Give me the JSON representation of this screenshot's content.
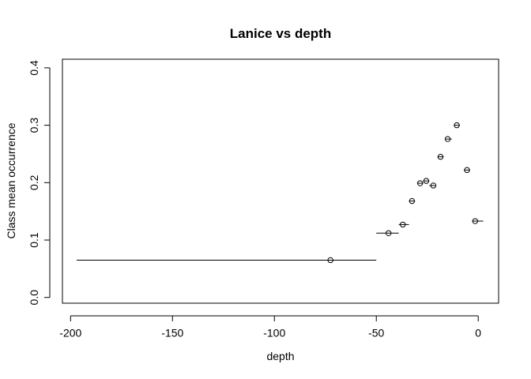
{
  "chart_data": {
    "type": "scatter",
    "title": "Lanice vs depth",
    "xlabel": "depth",
    "ylabel": "Class mean occurrence",
    "xlim": [
      -204,
      10
    ],
    "ylim": [
      -0.01,
      0.415
    ],
    "xticks": [
      -200,
      -150,
      -100,
      -50,
      0
    ],
    "xtick_labels": [
      "-200",
      "-150",
      "-100",
      "-50",
      "0"
    ],
    "yticks": [
      0.0,
      0.1,
      0.2,
      0.3,
      0.4
    ],
    "ytick_labels": [
      "0.0",
      "0.1",
      "0.2",
      "0.3",
      "0.4"
    ],
    "grid": false,
    "points": [
      {
        "x": -72.5,
        "y": 0.065,
        "xmin": -197,
        "xmax": -50
      },
      {
        "x": -44,
        "y": 0.112,
        "xmin": -50,
        "xmax": -39
      },
      {
        "x": -37,
        "y": 0.127,
        "xmin": -39,
        "xmax": -34
      },
      {
        "x": -32.5,
        "y": 0.168,
        "xmin": -34,
        "xmax": -31
      },
      {
        "x": -28.5,
        "y": 0.199,
        "xmin": -30,
        "xmax": -27
      },
      {
        "x": -25.5,
        "y": 0.203,
        "xmin": -27,
        "xmax": -24
      },
      {
        "x": -22,
        "y": 0.195,
        "xmin": -24,
        "xmax": -21
      },
      {
        "x": -18.5,
        "y": 0.245,
        "xmin": -20,
        "xmax": -17
      },
      {
        "x": -15,
        "y": 0.276,
        "xmin": -16,
        "xmax": -13
      },
      {
        "x": -10.5,
        "y": 0.3,
        "xmin": -12,
        "xmax": -9
      },
      {
        "x": -5.5,
        "y": 0.222,
        "xmin": -7,
        "xmax": -4
      },
      {
        "x": -1.5,
        "y": 0.133,
        "xmin": -3,
        "xmax": 2.5
      }
    ]
  }
}
